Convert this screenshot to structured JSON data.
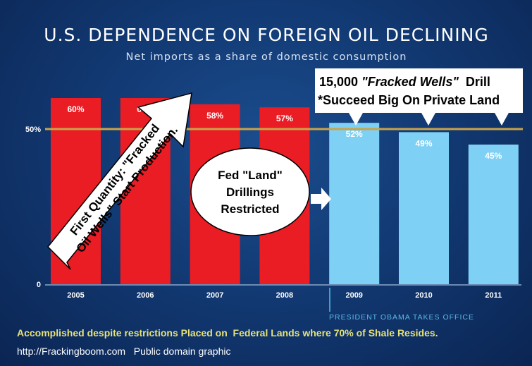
{
  "chart_data": {
    "type": "bar",
    "title": "U.S. DEPENDENCE ON FOREIGN OIL DECLINING",
    "subtitle": "Net imports as a share of domestic consumption",
    "categories": [
      "2005",
      "2006",
      "2007",
      "2008",
      "2009",
      "2010",
      "2011"
    ],
    "values": [
      60,
      60,
      58,
      57,
      52,
      49,
      45
    ],
    "value_labels": [
      "60%",
      "60%",
      "58%",
      "57%",
      "52%",
      "49%",
      "45%"
    ],
    "ylim": [
      0,
      60
    ],
    "yticks": [
      {
        "value": 0,
        "label": "0"
      },
      {
        "value": 50,
        "label": "50%"
      }
    ],
    "reference_line": {
      "value": 50,
      "color": "#c9a349"
    },
    "colors": {
      "before": "#ea1c24",
      "after": "#7fd0f5"
    },
    "marker": {
      "after_category": "2008",
      "label": "PRESIDENT OBAMA TAKES OFFICE"
    }
  },
  "annotations": {
    "arrow_text": [
      "First Quantity: \"Fracked",
      "Oil Wells\" Start Production."
    ],
    "oval_text": [
      "Fed \"Land\"",
      "Drillings",
      "Restricted"
    ],
    "callout_line1_num": "15,000 ",
    "callout_line1_italic": "\"Fracked Wells\"",
    "callout_line1_end": "  Drill",
    "callout_line2": "*Succeed Big On Private Land"
  },
  "footer": {
    "line1": "Accomplished despite restrictions Placed on  Federal Lands where 70% of Shale Resides.",
    "line2": "http://Frackingboom.com   Public domain graphic"
  }
}
